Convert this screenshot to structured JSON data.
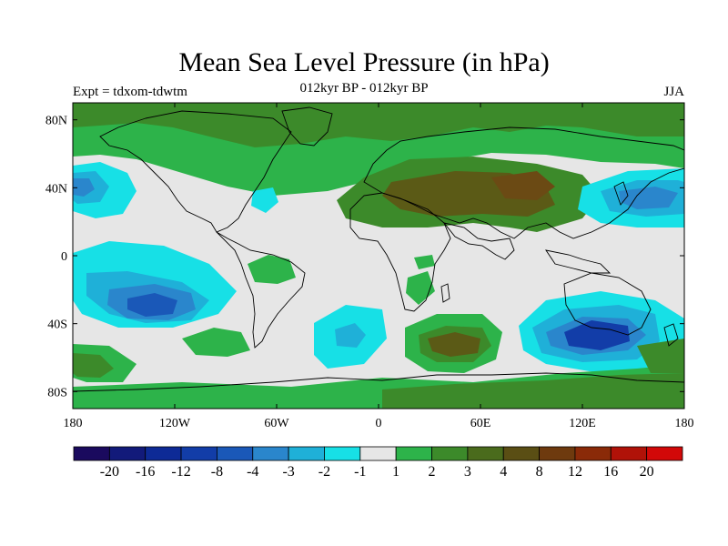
{
  "header": {
    "title": "Mean Sea Level Pressure (in hPa)",
    "subtitle": "012kyr BP - 012kyr BP",
    "left_label": "Expt = tdxom-tdwtm",
    "right_label": "JJA"
  },
  "axes": {
    "lat_ticks": [
      {
        "value": 80,
        "label": "80N"
      },
      {
        "value": 40,
        "label": "40N"
      },
      {
        "value": 0,
        "label": "0"
      },
      {
        "value": -40,
        "label": "40S"
      },
      {
        "value": -80,
        "label": "80S"
      }
    ],
    "lon_ticks": [
      {
        "value": -180,
        "label": "180"
      },
      {
        "value": -120,
        "label": "120W"
      },
      {
        "value": -60,
        "label": "60W"
      },
      {
        "value": 0,
        "label": "0"
      },
      {
        "value": 60,
        "label": "60E"
      },
      {
        "value": 120,
        "label": "120E"
      },
      {
        "value": 180,
        "label": "180"
      }
    ]
  },
  "colorbar": {
    "colors": [
      "#1a0a5e",
      "#121a7a",
      "#0d2a96",
      "#123da8",
      "#1a58b8",
      "#2a86cc",
      "#1fb0d8",
      "#17e0e6",
      "#e6e6e6",
      "#2db34a",
      "#3c8a2a",
      "#4a6b1c",
      "#5a4e14",
      "#6e3a0e",
      "#8a2a08",
      "#b01208",
      "#d20808"
    ],
    "labels": [
      "-20",
      "-16",
      "-12",
      "-8",
      "-4",
      "-3",
      "-2",
      "-1",
      "1",
      "2",
      "3",
      "4",
      "8",
      "12",
      "16",
      "20"
    ]
  },
  "map_colors": {
    "neutral": "#e6e6e6",
    "pos1": "#2db34a",
    "pos2": "#3c8a2a",
    "pos3": "#5b5a16",
    "pos4": "#6b4a14",
    "neg1": "#17e0e6",
    "neg2": "#1fb0d8",
    "neg3": "#2a86cc",
    "neg4": "#1a58b8",
    "neg5": "#123da8"
  }
}
